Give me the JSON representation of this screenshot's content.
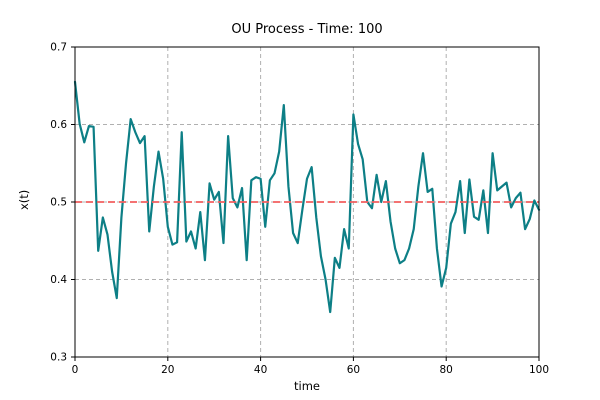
{
  "window": {
    "background": "#ffffff"
  },
  "chart_data": {
    "type": "line",
    "title": "OU Process - Time: 100",
    "xlabel": "time",
    "ylabel": "x(t)",
    "xlim": [
      0,
      100
    ],
    "ylim": [
      0.3,
      0.7
    ],
    "xticks": [
      0,
      20,
      40,
      60,
      80,
      100
    ],
    "xtick_labels": [
      "0",
      "20",
      "40",
      "60",
      "80",
      "100"
    ],
    "yticks": [
      0.3,
      0.4,
      0.5,
      0.6,
      0.7
    ],
    "ytick_labels": [
      "0.3",
      "0.4",
      "0.5",
      "0.6",
      "0.7"
    ],
    "grid": true,
    "grid_color": "#b0b0b0",
    "axis_color": "#000000",
    "text_color": "#000000",
    "legend_position": "none",
    "series": [
      {
        "name": "ou-process-trajectory",
        "color": "#0d7f86",
        "style": "solid",
        "width": 2.2,
        "x": [
          0,
          1,
          2,
          3,
          4,
          5,
          6,
          7,
          8,
          9,
          10,
          11,
          12,
          13,
          14,
          15,
          16,
          17,
          18,
          19,
          20,
          21,
          22,
          23,
          24,
          25,
          26,
          27,
          28,
          29,
          30,
          31,
          32,
          33,
          34,
          35,
          36,
          37,
          38,
          39,
          40,
          41,
          42,
          43,
          44,
          45,
          46,
          47,
          48,
          49,
          50,
          51,
          52,
          53,
          54,
          55,
          56,
          57,
          58,
          59,
          60,
          61,
          62,
          63,
          64,
          65,
          66,
          67,
          68,
          69,
          70,
          71,
          72,
          73,
          74,
          75,
          76,
          77,
          78,
          79,
          80,
          81,
          82,
          83,
          84,
          85,
          86,
          87,
          88,
          89,
          90,
          91,
          92,
          93,
          94,
          95,
          96,
          97,
          98,
          99,
          100
        ],
        "y": [
          0.655,
          0.601,
          0.577,
          0.598,
          0.597,
          0.437,
          0.48,
          0.458,
          0.41,
          0.376,
          0.48,
          0.55,
          0.607,
          0.59,
          0.576,
          0.585,
          0.462,
          0.52,
          0.565,
          0.53,
          0.468,
          0.445,
          0.448,
          0.59,
          0.449,
          0.462,
          0.44,
          0.487,
          0.425,
          0.524,
          0.503,
          0.513,
          0.447,
          0.585,
          0.505,
          0.493,
          0.518,
          0.425,
          0.528,
          0.532,
          0.53,
          0.468,
          0.528,
          0.537,
          0.565,
          0.625,
          0.52,
          0.46,
          0.447,
          0.49,
          0.53,
          0.545,
          0.48,
          0.43,
          0.4,
          0.358,
          0.428,
          0.415,
          0.465,
          0.44,
          0.613,
          0.575,
          0.555,
          0.5,
          0.492,
          0.535,
          0.5,
          0.527,
          0.475,
          0.44,
          0.421,
          0.425,
          0.44,
          0.465,
          0.52,
          0.563,
          0.513,
          0.517,
          0.44,
          0.391,
          0.415,
          0.472,
          0.487,
          0.527,
          0.46,
          0.529,
          0.481,
          0.477,
          0.515,
          0.46,
          0.563,
          0.515,
          0.52,
          0.525,
          0.493,
          0.505,
          0.512,
          0.465,
          0.478,
          0.502,
          0.49
        ]
      },
      {
        "name": "mean-reversion-level",
        "color": "#f25f5f",
        "style": "dashed",
        "width": 1.8,
        "y_const": 0.5
      }
    ]
  }
}
